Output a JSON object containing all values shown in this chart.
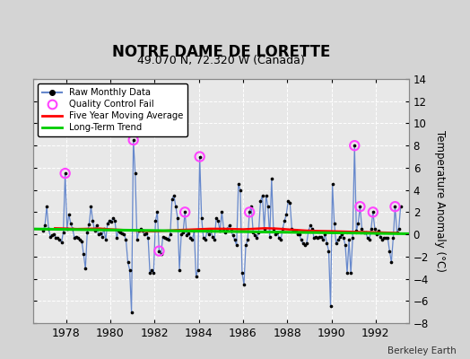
{
  "title": "NOTRE DAME DE LORETTE",
  "subtitle": "49.070 N, 72.320 W (Canada)",
  "ylabel": "Temperature Anomaly (°C)",
  "credit": "Berkeley Earth",
  "bg_color": "#d4d4d4",
  "plot_bg_color": "#e8e8e8",
  "ylim": [
    -8,
    14
  ],
  "yticks": [
    -8,
    -6,
    -4,
    -2,
    0,
    2,
    4,
    6,
    8,
    10,
    12,
    14
  ],
  "xlim": [
    1976.5,
    1993.5
  ],
  "xticks": [
    1978,
    1980,
    1982,
    1984,
    1986,
    1988,
    1990,
    1992
  ],
  "raw_color": "#6688cc",
  "dot_color": "#000000",
  "qc_color": "#ff44ff",
  "mavg_color": "#ff0000",
  "trend_color": "#00cc00",
  "raw_data": [
    [
      1976.958,
      0.3
    ],
    [
      1977.042,
      0.8
    ],
    [
      1977.125,
      2.5
    ],
    [
      1977.208,
      0.5
    ],
    [
      1977.292,
      -0.2
    ],
    [
      1977.375,
      -0.1
    ],
    [
      1977.458,
      0.0
    ],
    [
      1977.542,
      -0.3
    ],
    [
      1977.625,
      -0.3
    ],
    [
      1977.708,
      -0.5
    ],
    [
      1977.792,
      -0.7
    ],
    [
      1977.875,
      0.2
    ],
    [
      1977.958,
      5.5
    ],
    [
      1978.042,
      0.5
    ],
    [
      1978.125,
      1.8
    ],
    [
      1978.208,
      1.0
    ],
    [
      1978.292,
      0.5
    ],
    [
      1978.375,
      -0.3
    ],
    [
      1978.458,
      -0.2
    ],
    [
      1978.542,
      -0.3
    ],
    [
      1978.625,
      -0.5
    ],
    [
      1978.708,
      -0.6
    ],
    [
      1978.792,
      -1.8
    ],
    [
      1978.875,
      -3.1
    ],
    [
      1978.958,
      0.2
    ],
    [
      1979.042,
      0.9
    ],
    [
      1979.125,
      2.5
    ],
    [
      1979.208,
      1.2
    ],
    [
      1979.292,
      0.3
    ],
    [
      1979.375,
      0.8
    ],
    [
      1979.458,
      0.0
    ],
    [
      1979.542,
      0.1
    ],
    [
      1979.625,
      -0.2
    ],
    [
      1979.708,
      0.5
    ],
    [
      1979.792,
      -0.5
    ],
    [
      1979.875,
      1.0
    ],
    [
      1979.958,
      1.2
    ],
    [
      1980.042,
      1.1
    ],
    [
      1980.125,
      1.5
    ],
    [
      1980.208,
      1.2
    ],
    [
      1980.292,
      -0.3
    ],
    [
      1980.375,
      0.3
    ],
    [
      1980.458,
      0.2
    ],
    [
      1980.542,
      0.1
    ],
    [
      1980.625,
      0.0
    ],
    [
      1980.708,
      -0.5
    ],
    [
      1980.792,
      -2.5
    ],
    [
      1980.875,
      -3.2
    ],
    [
      1980.958,
      -7.0
    ],
    [
      1981.042,
      8.5
    ],
    [
      1981.125,
      5.5
    ],
    [
      1981.208,
      -0.5
    ],
    [
      1981.292,
      0.3
    ],
    [
      1981.375,
      0.5
    ],
    [
      1981.458,
      0.3
    ],
    [
      1981.542,
      0.0
    ],
    [
      1981.625,
      0.1
    ],
    [
      1981.708,
      -0.3
    ],
    [
      1981.792,
      -3.5
    ],
    [
      1981.875,
      -3.2
    ],
    [
      1981.958,
      -3.5
    ],
    [
      1982.042,
      1.2
    ],
    [
      1982.125,
      2.0
    ],
    [
      1982.208,
      -1.5
    ],
    [
      1982.292,
      -1.8
    ],
    [
      1982.375,
      -0.2
    ],
    [
      1982.458,
      -0.3
    ],
    [
      1982.542,
      -0.4
    ],
    [
      1982.625,
      -0.5
    ],
    [
      1982.708,
      0.0
    ],
    [
      1982.792,
      3.2
    ],
    [
      1982.875,
      3.5
    ],
    [
      1982.958,
      2.5
    ],
    [
      1983.042,
      1.5
    ],
    [
      1983.125,
      -3.2
    ],
    [
      1983.208,
      0.0
    ],
    [
      1983.292,
      0.2
    ],
    [
      1983.375,
      2.0
    ],
    [
      1983.458,
      -0.1
    ],
    [
      1983.542,
      0.1
    ],
    [
      1983.625,
      -0.3
    ],
    [
      1983.708,
      -0.5
    ],
    [
      1983.792,
      0.3
    ],
    [
      1983.875,
      -3.8
    ],
    [
      1983.958,
      -3.2
    ],
    [
      1984.042,
      7.0
    ],
    [
      1984.125,
      1.5
    ],
    [
      1984.208,
      -0.3
    ],
    [
      1984.292,
      -0.5
    ],
    [
      1984.375,
      0.3
    ],
    [
      1984.458,
      0.0
    ],
    [
      1984.542,
      0.3
    ],
    [
      1984.625,
      -0.2
    ],
    [
      1984.708,
      -0.5
    ],
    [
      1984.792,
      1.5
    ],
    [
      1984.875,
      1.2
    ],
    [
      1984.958,
      0.3
    ],
    [
      1985.042,
      2.0
    ],
    [
      1985.125,
      0.5
    ],
    [
      1985.208,
      0.2
    ],
    [
      1985.292,
      0.5
    ],
    [
      1985.375,
      0.8
    ],
    [
      1985.458,
      0.3
    ],
    [
      1985.542,
      -0.1
    ],
    [
      1985.625,
      -0.5
    ],
    [
      1985.708,
      -1.0
    ],
    [
      1985.792,
      4.5
    ],
    [
      1985.875,
      4.0
    ],
    [
      1985.958,
      -3.5
    ],
    [
      1986.042,
      -4.5
    ],
    [
      1986.125,
      -1.0
    ],
    [
      1986.208,
      -0.5
    ],
    [
      1986.292,
      2.0
    ],
    [
      1986.375,
      2.5
    ],
    [
      1986.458,
      0.2
    ],
    [
      1986.542,
      -0.1
    ],
    [
      1986.625,
      -0.3
    ],
    [
      1986.708,
      0.2
    ],
    [
      1986.792,
      3.0
    ],
    [
      1986.875,
      3.5
    ],
    [
      1986.958,
      0.5
    ],
    [
      1987.042,
      3.5
    ],
    [
      1987.125,
      2.5
    ],
    [
      1987.208,
      -0.2
    ],
    [
      1987.292,
      5.0
    ],
    [
      1987.375,
      0.5
    ],
    [
      1987.458,
      0.0
    ],
    [
      1987.542,
      0.2
    ],
    [
      1987.625,
      -0.3
    ],
    [
      1987.708,
      -0.5
    ],
    [
      1987.792,
      0.5
    ],
    [
      1987.875,
      1.2
    ],
    [
      1987.958,
      1.8
    ],
    [
      1988.042,
      3.0
    ],
    [
      1988.125,
      2.8
    ],
    [
      1988.208,
      0.5
    ],
    [
      1988.292,
      0.3
    ],
    [
      1988.375,
      0.3
    ],
    [
      1988.458,
      0.0
    ],
    [
      1988.542,
      0.0
    ],
    [
      1988.625,
      -0.5
    ],
    [
      1988.708,
      -0.8
    ],
    [
      1988.792,
      -1.0
    ],
    [
      1988.875,
      -0.8
    ],
    [
      1988.958,
      0.3
    ],
    [
      1989.042,
      0.8
    ],
    [
      1989.125,
      0.5
    ],
    [
      1989.208,
      -0.3
    ],
    [
      1989.292,
      -0.2
    ],
    [
      1989.375,
      -0.3
    ],
    [
      1989.458,
      -0.2
    ],
    [
      1989.542,
      -0.2
    ],
    [
      1989.625,
      -0.5
    ],
    [
      1989.708,
      0.0
    ],
    [
      1989.792,
      -0.8
    ],
    [
      1989.875,
      -1.5
    ],
    [
      1989.958,
      -6.5
    ],
    [
      1990.042,
      4.5
    ],
    [
      1990.125,
      1.0
    ],
    [
      1990.208,
      -0.8
    ],
    [
      1990.292,
      -0.5
    ],
    [
      1990.375,
      -0.2
    ],
    [
      1990.458,
      0.0
    ],
    [
      1990.542,
      -0.3
    ],
    [
      1990.625,
      -1.0
    ],
    [
      1990.708,
      -3.5
    ],
    [
      1990.792,
      -0.5
    ],
    [
      1990.875,
      -3.5
    ],
    [
      1990.958,
      -0.3
    ],
    [
      1991.042,
      8.0
    ],
    [
      1991.125,
      0.3
    ],
    [
      1991.208,
      1.0
    ],
    [
      1991.292,
      2.5
    ],
    [
      1991.375,
      0.5
    ],
    [
      1991.458,
      0.2
    ],
    [
      1991.542,
      0.2
    ],
    [
      1991.625,
      -0.3
    ],
    [
      1991.708,
      -0.5
    ],
    [
      1991.792,
      0.5
    ],
    [
      1991.875,
      2.0
    ],
    [
      1991.958,
      0.5
    ],
    [
      1992.042,
      0.0
    ],
    [
      1992.125,
      0.3
    ],
    [
      1992.208,
      -0.2
    ],
    [
      1992.292,
      -0.5
    ],
    [
      1992.375,
      -0.3
    ],
    [
      1992.458,
      -0.3
    ],
    [
      1992.542,
      -0.3
    ],
    [
      1992.625,
      -1.5
    ],
    [
      1992.708,
      -2.5
    ],
    [
      1992.792,
      -0.3
    ],
    [
      1992.875,
      2.5
    ],
    [
      1992.958,
      0.2
    ],
    [
      1993.042,
      0.5
    ],
    [
      1993.125,
      2.5
    ]
  ],
  "qc_fails": [
    [
      1977.958,
      5.5
    ],
    [
      1981.042,
      8.5
    ],
    [
      1982.208,
      -1.5
    ],
    [
      1983.375,
      2.0
    ],
    [
      1984.042,
      7.0
    ],
    [
      1986.292,
      2.0
    ],
    [
      1991.042,
      8.0
    ],
    [
      1991.292,
      2.5
    ],
    [
      1991.875,
      2.0
    ],
    [
      1992.875,
      2.5
    ]
  ],
  "mavg_data": [
    [
      1977.5,
      0.55
    ],
    [
      1978.0,
      0.52
    ],
    [
      1978.5,
      0.48
    ],
    [
      1979.0,
      0.5
    ],
    [
      1979.5,
      0.52
    ],
    [
      1980.0,
      0.45
    ],
    [
      1980.5,
      0.4
    ],
    [
      1981.0,
      0.35
    ],
    [
      1981.5,
      0.3
    ],
    [
      1982.0,
      0.28
    ],
    [
      1982.5,
      0.32
    ],
    [
      1983.0,
      0.38
    ],
    [
      1983.5,
      0.42
    ],
    [
      1984.0,
      0.46
    ],
    [
      1984.5,
      0.5
    ],
    [
      1985.0,
      0.5
    ],
    [
      1985.5,
      0.48
    ],
    [
      1986.0,
      0.45
    ],
    [
      1986.5,
      0.5
    ],
    [
      1987.0,
      0.55
    ],
    [
      1987.5,
      0.52
    ],
    [
      1988.0,
      0.45
    ],
    [
      1988.5,
      0.38
    ],
    [
      1989.0,
      0.32
    ],
    [
      1989.5,
      0.3
    ],
    [
      1990.0,
      0.28
    ],
    [
      1990.5,
      0.25
    ],
    [
      1991.0,
      0.22
    ],
    [
      1991.5,
      0.2
    ],
    [
      1992.0,
      0.18
    ],
    [
      1992.5,
      0.15
    ],
    [
      1993.0,
      0.12
    ]
  ],
  "trend_x": [
    1976.5,
    1993.5
  ],
  "trend_y": [
    0.48,
    0.05
  ]
}
